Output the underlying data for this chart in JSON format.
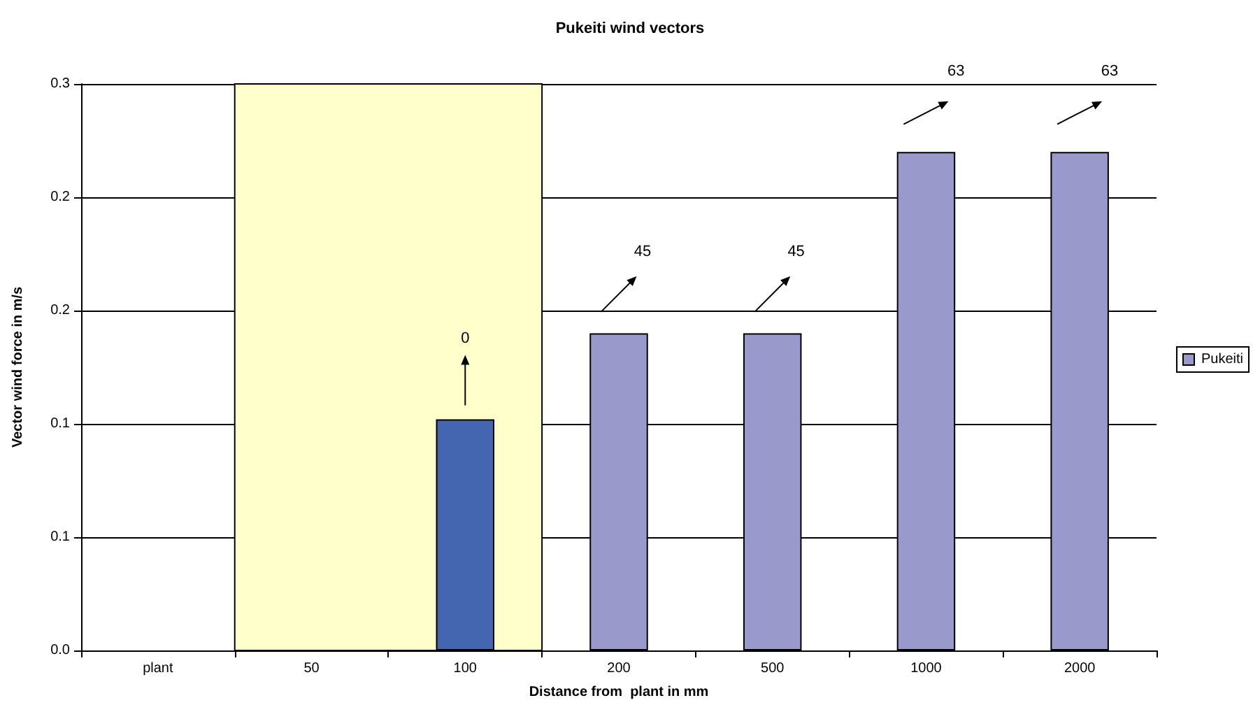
{
  "chart_data": {
    "type": "bar",
    "title": "Pukeiti wind vectors",
    "xlabel": "Distance from  plant in mm",
    "ylabel": "Vector wind force in m/s",
    "categories": [
      "plant",
      "50",
      "100",
      "200",
      "500",
      "1000",
      "2000"
    ],
    "series": [
      {
        "name": "Pukeiti",
        "color": "#9999cc",
        "values": [
          null,
          null,
          0.102,
          0.14,
          0.14,
          0.22,
          0.22
        ],
        "colors": [
          null,
          null,
          "#4466b0",
          "#9999cc",
          "#9999cc",
          "#9999cc",
          "#9999cc"
        ]
      }
    ],
    "ylim": [
      0,
      0.25
    ],
    "yticks": [
      {
        "value": 0,
        "label": "0.0"
      },
      {
        "value": 0.05,
        "label": "0.1"
      },
      {
        "value": 0.1,
        "label": "0.1"
      },
      {
        "value": 0.15,
        "label": "0.2"
      },
      {
        "value": 0.2,
        "label": "0.2"
      },
      {
        "value": 0.25,
        "label": "0.3"
      }
    ],
    "bands": [
      {
        "axis": "x",
        "from": "50",
        "to": "100",
        "color": "#ffffcc"
      }
    ],
    "annotations": [
      "0",
      "45",
      "45",
      "63",
      "63"
    ],
    "grid": "y",
    "legend": "right"
  }
}
